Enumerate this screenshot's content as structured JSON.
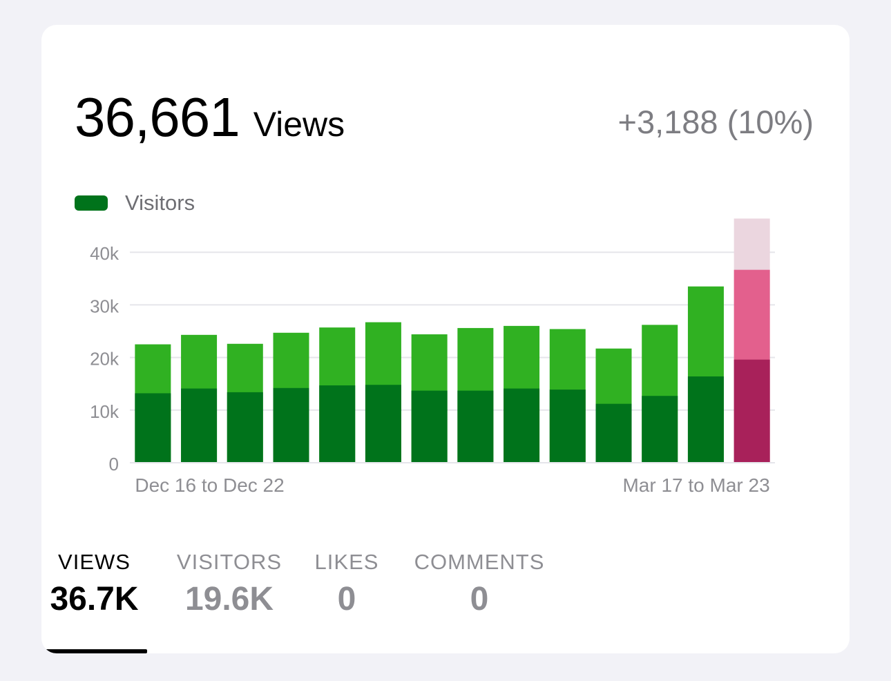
{
  "header": {
    "total_value": "36,661",
    "total_unit": "Views",
    "change": "+3,188 (10%)"
  },
  "legend": {
    "label": "Visitors",
    "color": "#00731b"
  },
  "colors": {
    "visitors": "#00731b",
    "views": "#30b122",
    "current_visitors": "#a8215a",
    "current_views": "#e3608d",
    "current_previous": "#ebd6df",
    "grid": "#e5e5ea",
    "axis_text": "#8e8e93"
  },
  "chart_data": {
    "type": "bar",
    "categories": [
      "Dec 16 to Dec 22",
      "",
      "",
      "",
      "",
      "",
      "",
      "",
      "",
      "",
      "",
      "",
      "",
      "Mar 17 to Mar 23"
    ],
    "x_labels_shown": [
      "Dec 16 to Dec 22",
      "Mar 17 to Mar 23"
    ],
    "series": [
      {
        "name": "Visitors",
        "values": [
          13200,
          14100,
          13400,
          14200,
          14700,
          14800,
          13700,
          13700,
          14100,
          13900,
          11200,
          12700,
          16400,
          19600
        ]
      },
      {
        "values": [
          22500,
          24300,
          22600,
          24700,
          25700,
          26700,
          24400,
          25600,
          26000,
          25400,
          21700,
          26200,
          33500,
          36661
        ]
      }
    ],
    "highlight_last": {
      "previous_period_views": 46400
    },
    "yticks": [
      "0",
      "10k",
      "20k",
      "30k",
      "40k"
    ],
    "ytick_values": [
      0,
      10000,
      20000,
      30000,
      40000
    ],
    "ylim": [
      0,
      46400
    ],
    "grid": true,
    "legend_position": "top-left"
  },
  "tabs": [
    {
      "label": "VIEWS",
      "value": "36.7K",
      "active": true
    },
    {
      "label": "VISITORS",
      "value": "19.6K",
      "active": false
    },
    {
      "label": "LIKES",
      "value": "0",
      "active": false
    },
    {
      "label": "COMMENTS",
      "value": "0",
      "active": false
    }
  ]
}
